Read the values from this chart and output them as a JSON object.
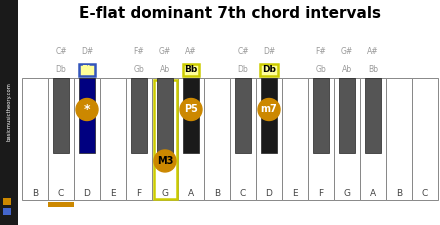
{
  "title": "E-flat dominant 7th chord intervals",
  "title_fontsize": 11,
  "bg_color": "#ffffff",
  "sidebar_color": "#1a1a1a",
  "sidebar_text": "basicmusictheory.com",
  "sidebar_square1": "#cc8800",
  "sidebar_square2": "#4466cc",
  "white_keys": [
    "B",
    "C",
    "D",
    "E",
    "F",
    "G",
    "A",
    "B",
    "C",
    "D",
    "E",
    "F",
    "G",
    "A",
    "B",
    "C"
  ],
  "gold_color": "#cc8800",
  "blue_dark": "#000080",
  "black_key_color": "#555555",
  "black_key_highlighted_Eb": "#000080",
  "black_key_highlighted_Bb": "#1a1a1a",
  "black_key_highlighted_Db": "#1a1a1a",
  "yellow_box_color": "#cccc00",
  "blue_box_color": "#3355bb",
  "label_yellow_bg": "#ffff99",
  "gray_label": "#999999"
}
